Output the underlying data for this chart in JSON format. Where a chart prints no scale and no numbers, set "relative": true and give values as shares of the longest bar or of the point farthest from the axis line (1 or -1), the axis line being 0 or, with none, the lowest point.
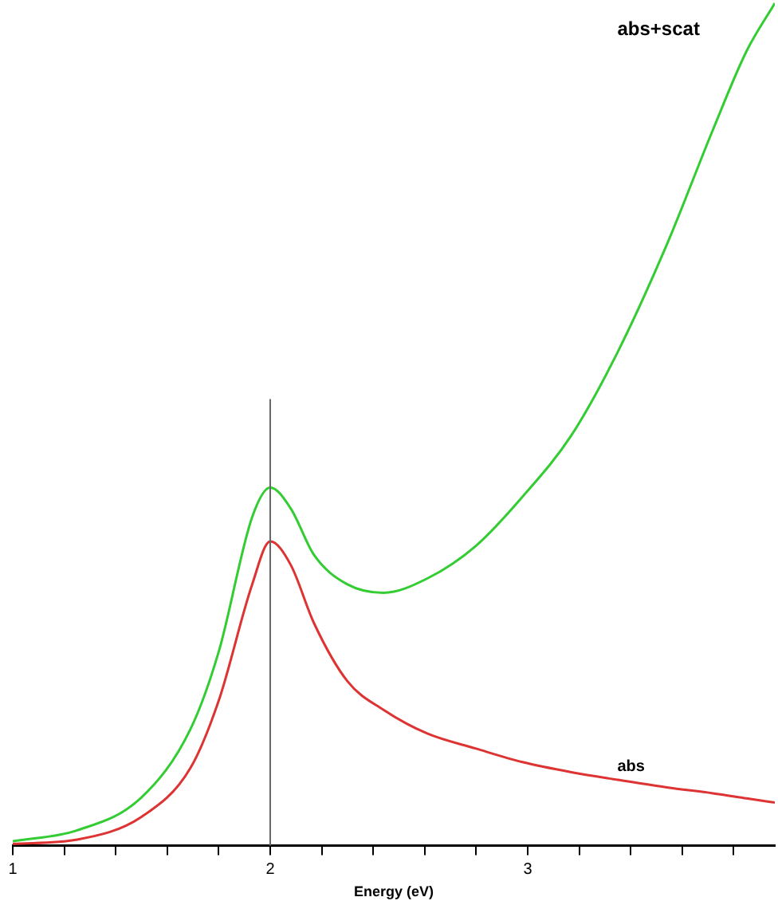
{
  "chart_data": {
    "type": "line",
    "xlabel": "Energy (eV)",
    "relative": true,
    "x": [
      1,
      1.25,
      1.5,
      1.69,
      1.8,
      1.93,
      2,
      2.08,
      2.17,
      2.3,
      2.44,
      2.61,
      2.8,
      2.98,
      3.17,
      3.35,
      3.54,
      3.72,
      3.85,
      3.96
    ],
    "series": [
      {
        "name": "abs+scat",
        "color": "#33cc33",
        "values": [
          0.005,
          0.018,
          0.057,
          0.138,
          0.23,
          0.39,
          0.425,
          0.4,
          0.345,
          0.31,
          0.3,
          0.317,
          0.356,
          0.414,
          0.487,
          0.586,
          0.713,
          0.85,
          0.943,
          1.0
        ]
      },
      {
        "name": "abs",
        "color": "#dd3333",
        "values": [
          0.002,
          0.007,
          0.034,
          0.092,
          0.172,
          0.31,
          0.361,
          0.333,
          0.264,
          0.195,
          0.161,
          0.133,
          0.115,
          0.099,
          0.087,
          0.078,
          0.069,
          0.062,
          0.056,
          0.051
        ]
      }
    ],
    "xlim": [
      1,
      3.96
    ],
    "xticks": [
      1,
      {
        "value": 1.2,
        "label": null
      },
      {
        "value": 1.4,
        "label": null
      },
      {
        "value": 1.6,
        "label": null
      },
      {
        "value": 1.8,
        "label": null
      },
      2,
      {
        "value": 2.2,
        "label": null
      },
      {
        "value": 2.4,
        "label": null
      },
      {
        "value": 2.6,
        "label": null
      },
      {
        "value": 2.8,
        "label": null
      },
      3,
      {
        "value": 3.2,
        "label": null
      },
      {
        "value": 3.4,
        "label": null
      },
      {
        "value": 3.6,
        "label": null
      },
      {
        "value": 3.8,
        "label": null
      }
    ],
    "ref_lines": [
      {
        "axis": "x",
        "value": 2,
        "color": "#666666"
      }
    ],
    "grid": false,
    "legend": false,
    "line_style": "solid",
    "marker": "none"
  }
}
